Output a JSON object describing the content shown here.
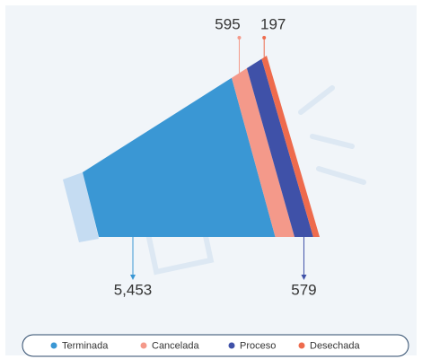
{
  "chart_data": {
    "type": "megaphone",
    "categories": [
      "Terminada",
      "Cancelada",
      "Proceso",
      "Desechada"
    ],
    "values": [
      5453,
      595,
      579,
      197
    ],
    "value_labels": [
      "5,453",
      "595",
      "579",
      "197"
    ],
    "colors": [
      "#3a97d4",
      "#f4998a",
      "#3f51a8",
      "#ee6b4d"
    ]
  }
}
